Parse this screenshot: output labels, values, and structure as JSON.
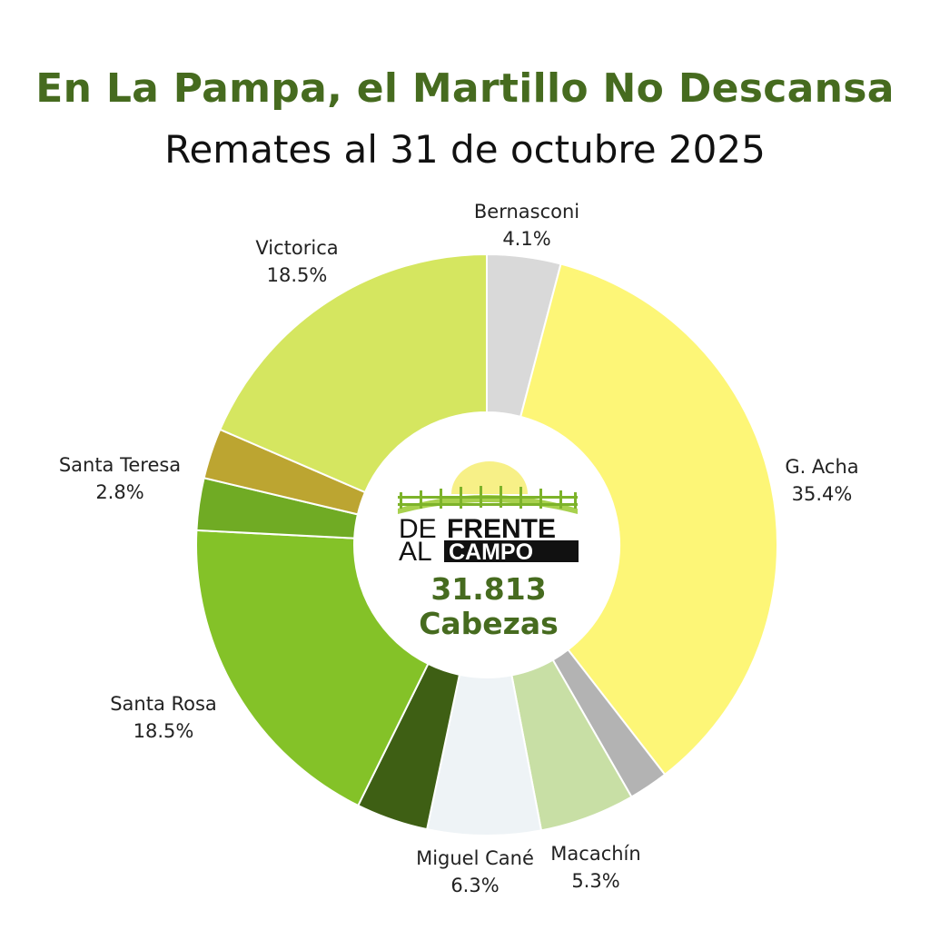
{
  "title": "En La Pampa, el Martillo No Descansa",
  "subtitle": "Remates al 31 de octubre 2025",
  "logo": {
    "line1_a": "DE",
    "line1_b": "FRENTE",
    "line2_a": "AL",
    "line2_b": "CAMPO"
  },
  "center": {
    "total": "31.813",
    "unit": "Cabezas"
  },
  "chart_data": {
    "type": "pie",
    "donut": true,
    "slices": [
      {
        "name": "Bernasconi",
        "value": 4.1,
        "label": "4.1%",
        "color": "#d9d9d9",
        "labeled": true
      },
      {
        "name": "G. Acha",
        "value": 35.4,
        "label": "35.4%",
        "color": "#fdf677",
        "labeled": true
      },
      {
        "name": "",
        "value": 2.2,
        "label": "",
        "color": "#b3b3b3",
        "labeled": false
      },
      {
        "name": "Macachín",
        "value": 5.3,
        "label": "5.3%",
        "color": "#c8dfa5",
        "labeled": true
      },
      {
        "name": "Miguel Cané",
        "value": 6.3,
        "label": "6.3%",
        "color": "#eef3f6",
        "labeled": true
      },
      {
        "name": "",
        "value": 4.0,
        "label": "",
        "color": "#3e5f14",
        "labeled": false
      },
      {
        "name": "Santa Rosa",
        "value": 18.5,
        "label": "18.5%",
        "color": "#84c228",
        "labeled": true
      },
      {
        "name": "",
        "value": 2.9,
        "label": "",
        "color": "#70ab24",
        "labeled": false
      },
      {
        "name": "Santa Teresa",
        "value": 2.8,
        "label": "2.8%",
        "color": "#bca531",
        "labeled": true
      },
      {
        "name": "Victorica",
        "value": 18.5,
        "label": "18.5%",
        "color": "#d5e660",
        "labeled": true
      }
    ]
  }
}
